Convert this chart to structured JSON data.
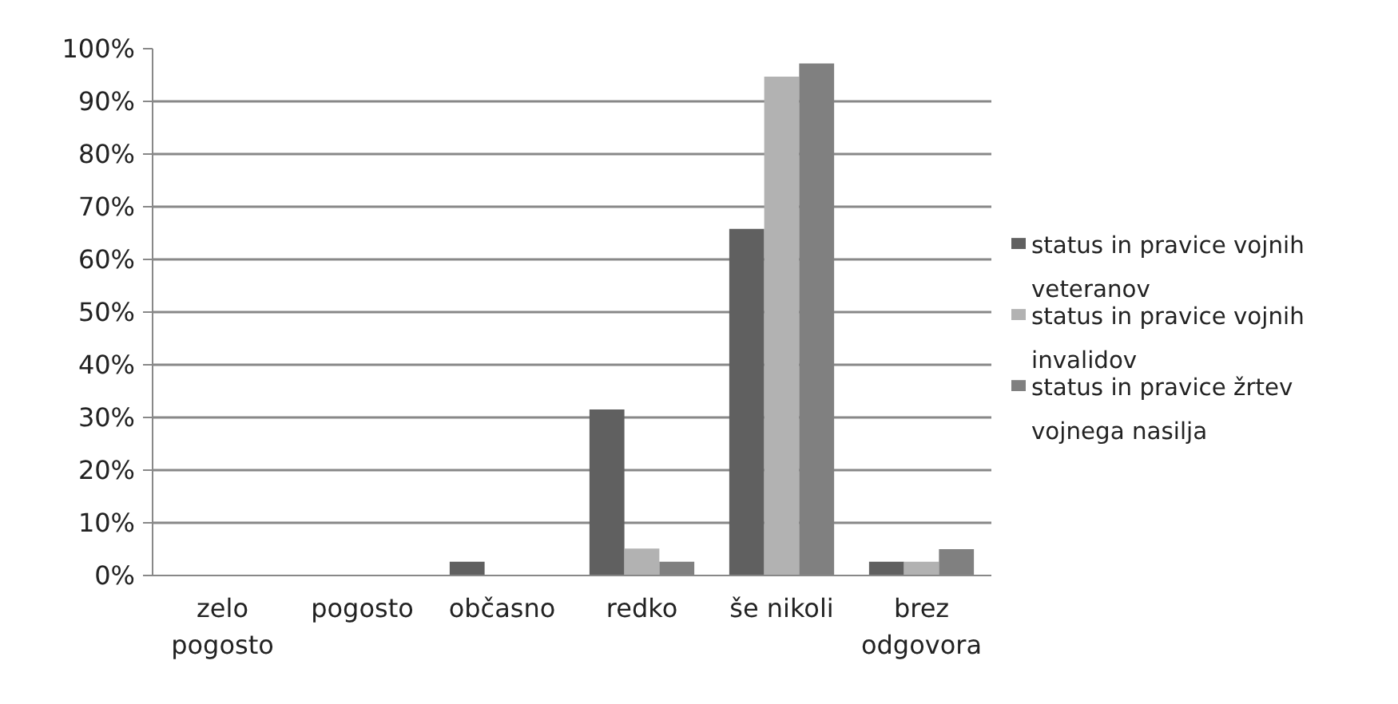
{
  "chart_data": {
    "type": "bar",
    "categories": [
      "zelo pogosto",
      "pogosto",
      "občasno",
      "redko",
      "še nikoli",
      "brez odgovora"
    ],
    "series": [
      {
        "name": "status in pravice vojnih veteranov",
        "color": "#606060",
        "values": [
          0,
          0,
          2.6,
          31.5,
          65.8,
          2.6
        ]
      },
      {
        "name": "status in pravice vojnih invalidov",
        "color": "#b2b2b2",
        "values": [
          0,
          0,
          0,
          5.1,
          94.7,
          2.6
        ]
      },
      {
        "name": "status in pravice žrtev vojnega nasilja",
        "color": "#808080",
        "values": [
          0,
          0,
          0,
          2.6,
          97.2,
          5.0
        ]
      }
    ],
    "ylim": [
      0,
      100
    ],
    "yticks": [
      {
        "value": 0,
        "label": "0%"
      },
      {
        "value": 10,
        "label": "10%"
      },
      {
        "value": 20,
        "label": "20%"
      },
      {
        "value": 30,
        "label": "30%"
      },
      {
        "value": 40,
        "label": "40%"
      },
      {
        "value": 50,
        "label": "50%"
      },
      {
        "value": 60,
        "label": "60%"
      },
      {
        "value": 70,
        "label": "70%"
      },
      {
        "value": 80,
        "label": "80%"
      },
      {
        "value": 90,
        "label": "90%"
      },
      {
        "value": 100,
        "label": "100%"
      }
    ],
    "grid": "y",
    "legend": "right"
  }
}
